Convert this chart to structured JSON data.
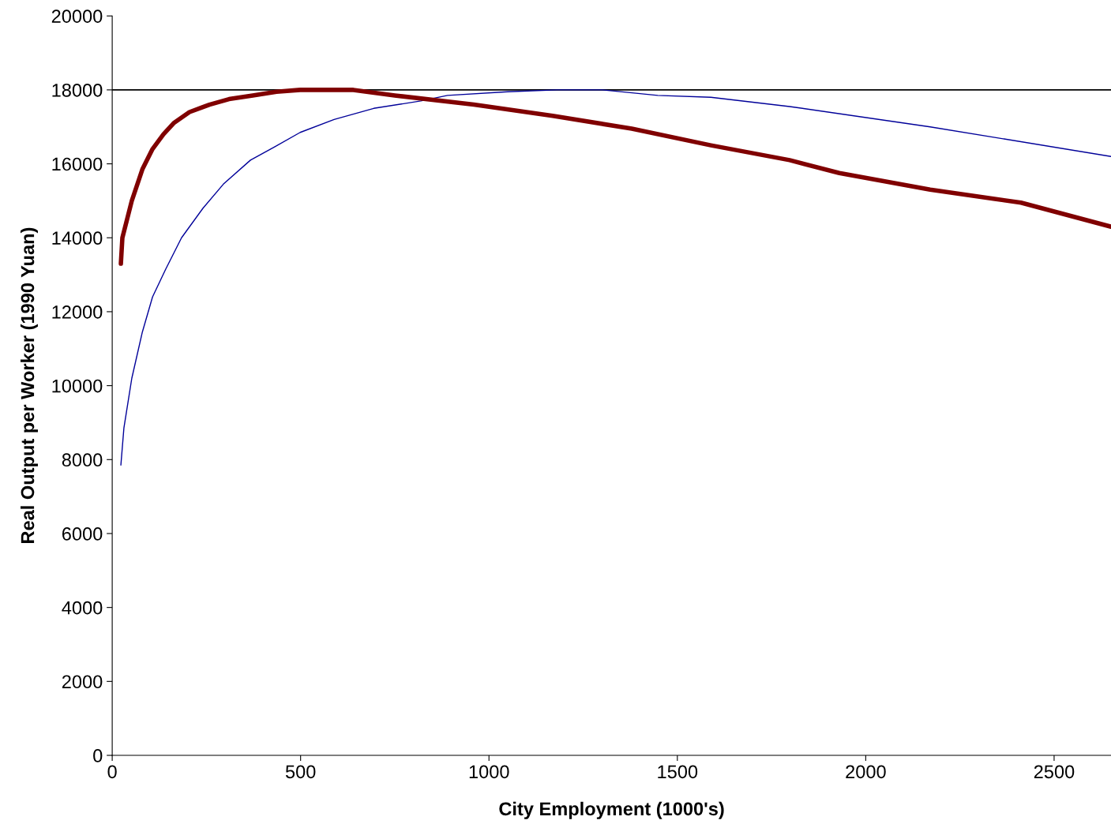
{
  "chart_data": {
    "type": "line",
    "xlabel": "City Employment (1000's)",
    "ylabel": "Real Output per Worker (1990 Yuan)",
    "xlim": [
      0,
      2651
    ],
    "xticks": [
      0,
      500,
      1000,
      1500,
      2000,
      2500
    ],
    "ylim": [
      0,
      20000
    ],
    "yticks": [
      0,
      2000,
      4000,
      6000,
      8000,
      10000,
      12000,
      14000,
      16000,
      18000,
      20000
    ],
    "grid": false,
    "marker": "none",
    "line_style": "solid",
    "ref_lines": [
      {
        "axis": "y",
        "value": 18000,
        "color": "#000000"
      }
    ],
    "series": [
      {
        "color": "#000099",
        "x": [
          23,
          31,
          52,
          80,
          107,
          142,
          184,
          241,
          295,
          367,
          430,
          499,
          589,
          694,
          819,
          890,
          1050,
          1180,
          1301,
          1448,
          1589,
          1798,
          2171,
          2651
        ],
        "values": [
          7850,
          8850,
          10200,
          11450,
          12400,
          13150,
          14000,
          14800,
          15450,
          16100,
          16450,
          16850,
          17200,
          17500,
          17700,
          17850,
          17950,
          18000,
          18000,
          17850,
          17800,
          17550,
          17000,
          16200
        ]
      },
      {
        "color": "#800000",
        "x": [
          23,
          27,
          52,
          80,
          107,
          136,
          163,
          205,
          258,
          310,
          373,
          436,
          499,
          640,
          750,
          960,
          1169,
          1379,
          1589,
          1798,
          1930,
          2171,
          2412,
          2651
        ],
        "values": [
          13300,
          14000,
          15000,
          15850,
          16400,
          16800,
          17100,
          17400,
          17600,
          17750,
          17850,
          17950,
          18000,
          18000,
          17850,
          17600,
          17300,
          16950,
          16500,
          16100,
          15750,
          15300,
          14950,
          14300
        ]
      }
    ]
  }
}
